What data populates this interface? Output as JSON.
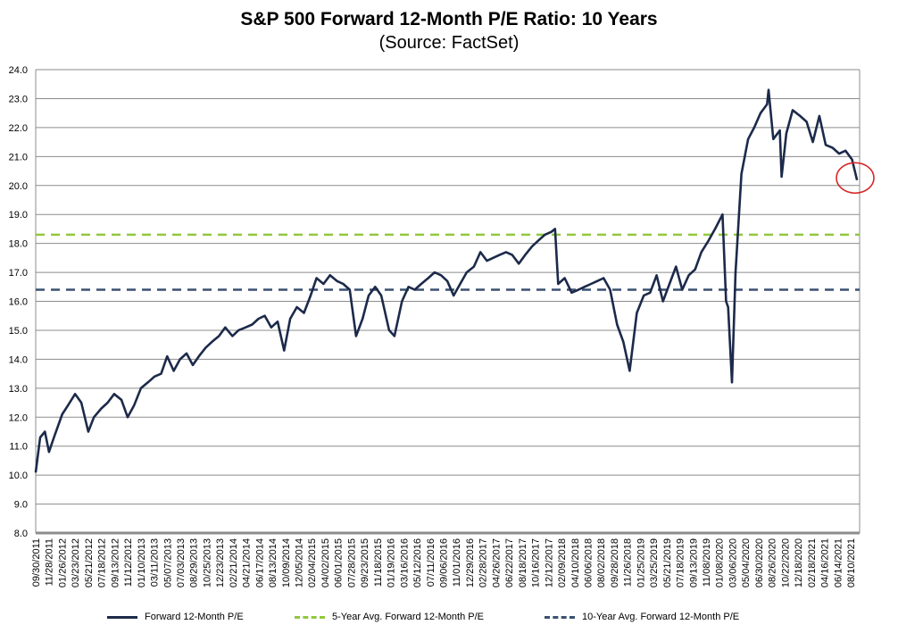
{
  "chart_data": {
    "type": "line",
    "title": "S&P 500 Forward 12-Month P/E Ratio: 10 Years",
    "subtitle": "(Source: FactSet)",
    "ylim": [
      8.0,
      24.0
    ],
    "yticks": [
      "8.0",
      "9.0",
      "10.0",
      "11.0",
      "12.0",
      "13.0",
      "14.0",
      "15.0",
      "16.0",
      "17.0",
      "18.0",
      "19.0",
      "20.0",
      "21.0",
      "22.0",
      "23.0",
      "24.0"
    ],
    "xticks": [
      "09/30/2011",
      "11/28/2011",
      "01/26/2012",
      "03/23/2012",
      "05/21/2012",
      "07/18/2012",
      "09/13/2012",
      "11/12/2012",
      "01/10/2013",
      "03/11/2013",
      "05/07/2013",
      "07/03/2013",
      "08/29/2013",
      "10/25/2013",
      "12/23/2013",
      "02/21/2014",
      "04/21/2014",
      "06/17/2014",
      "08/13/2014",
      "10/09/2014",
      "12/05/2014",
      "02/04/2015",
      "04/02/2015",
      "06/01/2015",
      "07/28/2015",
      "09/23/2015",
      "11/18/2015",
      "01/19/2016",
      "03/16/2016",
      "05/12/2016",
      "07/11/2016",
      "09/06/2016",
      "11/01/2016",
      "12/29/2016",
      "02/28/2017",
      "04/26/2017",
      "06/22/2017",
      "08/18/2017",
      "10/16/2017",
      "12/12/2017",
      "02/09/2018",
      "04/10/2018",
      "06/06/2018",
      "08/02/2018",
      "09/28/2018",
      "11/26/2018",
      "01/25/2019",
      "03/25/2019",
      "05/21/2019",
      "07/18/2019",
      "09/13/2019",
      "11/08/2019",
      "01/08/2020",
      "03/06/2020",
      "05/04/2020",
      "06/30/2020",
      "08/26/2020",
      "10/22/2020",
      "12/18/2020",
      "02/18/2021",
      "04/16/2021",
      "06/14/2021",
      "08/10/2021"
    ],
    "grid": true,
    "series": [
      {
        "name": "Forward 12-Month P/E",
        "color": "#1c2a4a",
        "points": [
          [
            "09/30/2011",
            10.1
          ],
          [
            "10/20/2011",
            11.3
          ],
          [
            "11/10/2011",
            11.5
          ],
          [
            "11/28/2011",
            10.8
          ],
          [
            "12/20/2011",
            11.3
          ],
          [
            "01/26/2012",
            12.1
          ],
          [
            "02/20/2012",
            12.4
          ],
          [
            "03/23/2012",
            12.8
          ],
          [
            "04/20/2012",
            12.5
          ],
          [
            "05/21/2012",
            11.5
          ],
          [
            "06/15/2012",
            12.0
          ],
          [
            "07/18/2012",
            12.3
          ],
          [
            "08/15/2012",
            12.5
          ],
          [
            "09/13/2012",
            12.8
          ],
          [
            "10/15/2012",
            12.6
          ],
          [
            "11/12/2012",
            12.0
          ],
          [
            "12/10/2012",
            12.4
          ],
          [
            "01/10/2013",
            13.0
          ],
          [
            "02/10/2013",
            13.2
          ],
          [
            "03/11/2013",
            13.4
          ],
          [
            "04/10/2013",
            13.5
          ],
          [
            "05/07/2013",
            14.1
          ],
          [
            "06/05/2013",
            13.6
          ],
          [
            "07/03/2013",
            14.0
          ],
          [
            "08/01/2013",
            14.2
          ],
          [
            "08/29/2013",
            13.8
          ],
          [
            "09/25/2013",
            14.1
          ],
          [
            "10/25/2013",
            14.4
          ],
          [
            "11/22/2013",
            14.6
          ],
          [
            "12/23/2013",
            14.8
          ],
          [
            "01/20/2014",
            15.1
          ],
          [
            "02/21/2014",
            14.8
          ],
          [
            "03/20/2014",
            15.0
          ],
          [
            "04/21/2014",
            15.1
          ],
          [
            "05/20/2014",
            15.2
          ],
          [
            "06/17/2014",
            15.4
          ],
          [
            "07/15/2014",
            15.5
          ],
          [
            "08/13/2014",
            15.1
          ],
          [
            "09/10/2014",
            15.3
          ],
          [
            "10/09/2014",
            14.3
          ],
          [
            "11/05/2014",
            15.4
          ],
          [
            "12/05/2014",
            15.8
          ],
          [
            "01/05/2015",
            15.6
          ],
          [
            "02/04/2015",
            16.2
          ],
          [
            "03/02/2015",
            16.8
          ],
          [
            "04/02/2015",
            16.6
          ],
          [
            "05/01/2015",
            16.9
          ],
          [
            "06/01/2015",
            16.7
          ],
          [
            "06/29/2015",
            16.6
          ],
          [
            "07/28/2015",
            16.4
          ],
          [
            "08/25/2015",
            14.8
          ],
          [
            "09/23/2015",
            15.4
          ],
          [
            "10/20/2015",
            16.2
          ],
          [
            "11/18/2015",
            16.5
          ],
          [
            "12/15/2015",
            16.2
          ],
          [
            "01/19/2016",
            15.0
          ],
          [
            "02/12/2016",
            14.8
          ],
          [
            "03/16/2016",
            16.0
          ],
          [
            "04/14/2016",
            16.5
          ],
          [
            "05/12/2016",
            16.4
          ],
          [
            "06/10/2016",
            16.6
          ],
          [
            "07/11/2016",
            16.8
          ],
          [
            "08/08/2016",
            17.0
          ],
          [
            "09/06/2016",
            16.9
          ],
          [
            "10/04/2016",
            16.7
          ],
          [
            "11/01/2016",
            16.2
          ],
          [
            "11/30/2016",
            16.6
          ],
          [
            "12/29/2016",
            17.0
          ],
          [
            "01/30/2017",
            17.2
          ],
          [
            "02/28/2017",
            17.7
          ],
          [
            "03/29/2017",
            17.4
          ],
          [
            "04/26/2017",
            17.5
          ],
          [
            "05/24/2017",
            17.6
          ],
          [
            "06/22/2017",
            17.7
          ],
          [
            "07/20/2017",
            17.6
          ],
          [
            "08/18/2017",
            17.3
          ],
          [
            "09/15/2017",
            17.6
          ],
          [
            "10/16/2017",
            17.9
          ],
          [
            "11/13/2017",
            18.1
          ],
          [
            "12/12/2017",
            18.3
          ],
          [
            "01/10/2018",
            18.4
          ],
          [
            "01/26/2018",
            18.5
          ],
          [
            "02/09/2018",
            16.6
          ],
          [
            "03/10/2018",
            16.8
          ],
          [
            "04/10/2018",
            16.3
          ],
          [
            "05/10/2018",
            16.4
          ],
          [
            "06/06/2018",
            16.5
          ],
          [
            "07/05/2018",
            16.6
          ],
          [
            "08/02/2018",
            16.7
          ],
          [
            "08/30/2018",
            16.8
          ],
          [
            "09/28/2018",
            16.4
          ],
          [
            "10/29/2018",
            15.2
          ],
          [
            "11/26/2018",
            14.6
          ],
          [
            "12/24/2018",
            13.6
          ],
          [
            "01/25/2019",
            15.6
          ],
          [
            "02/25/2019",
            16.2
          ],
          [
            "03/25/2019",
            16.3
          ],
          [
            "04/23/2019",
            16.9
          ],
          [
            "05/21/2019",
            16.0
          ],
          [
            "06/19/2019",
            16.6
          ],
          [
            "07/18/2019",
            17.2
          ],
          [
            "08/15/2019",
            16.4
          ],
          [
            "09/13/2019",
            16.9
          ],
          [
            "10/11/2019",
            17.1
          ],
          [
            "11/08/2019",
            17.7
          ],
          [
            "12/10/2019",
            18.1
          ],
          [
            "01/08/2020",
            18.5
          ],
          [
            "02/10/2020",
            19.0
          ],
          [
            "02/26/2020",
            16.0
          ],
          [
            "03/06/2020",
            15.8
          ],
          [
            "03/23/2020",
            13.2
          ],
          [
            "04/08/2020",
            17.0
          ],
          [
            "05/04/2020",
            20.4
          ],
          [
            "06/03/2020",
            21.6
          ],
          [
            "06/30/2020",
            22.0
          ],
          [
            "07/28/2020",
            22.5
          ],
          [
            "08/26/2020",
            22.8
          ],
          [
            "09/02/2020",
            23.3
          ],
          [
            "09/23/2020",
            21.6
          ],
          [
            "10/22/2020",
            21.9
          ],
          [
            "10/30/2020",
            20.3
          ],
          [
            "11/20/2020",
            21.8
          ],
          [
            "12/18/2020",
            22.6
          ],
          [
            "01/20/2021",
            22.4
          ],
          [
            "02/18/2021",
            22.2
          ],
          [
            "03/18/2021",
            21.5
          ],
          [
            "04/16/2021",
            22.4
          ],
          [
            "05/14/2021",
            21.4
          ],
          [
            "06/14/2021",
            21.3
          ],
          [
            "07/13/2021",
            21.1
          ],
          [
            "08/10/2021",
            21.2
          ],
          [
            "09/08/2021",
            20.9
          ],
          [
            "09/30/2021",
            20.2
          ]
        ]
      },
      {
        "name": "5-Year Avg. Forward 12-Month P/E",
        "color": "#92c83e",
        "value": 18.3
      },
      {
        "name": "10-Year Avg. Forward 12-Month P/E",
        "color": "#3a5170",
        "value": 16.4
      }
    ],
    "annotations": [
      {
        "type": "circle",
        "color": "#d62728",
        "x": "09/30/2021",
        "y": 20.2
      }
    ],
    "legend": "bottom"
  }
}
